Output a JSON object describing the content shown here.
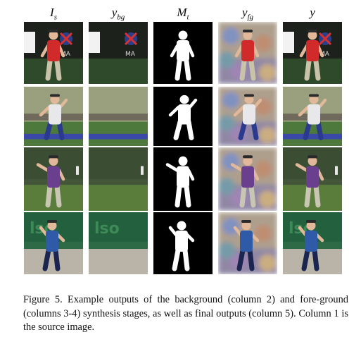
{
  "columns": [
    {
      "base": "I",
      "sub": "s"
    },
    {
      "base": "y",
      "sub": "bg"
    },
    {
      "base": "M",
      "sub": "t"
    },
    {
      "base": "y",
      "sub": "fg"
    },
    {
      "base": "y",
      "sub": ""
    }
  ],
  "rows": [
    {
      "scene": "golf-course-night",
      "sky": "#1c211c",
      "ground": "#2f4a2b",
      "shirt": "#d12a2a",
      "pants": "#c9c3aa",
      "signage": "MA"
    },
    {
      "scene": "tennis-court",
      "sky": "#9aa07e",
      "ground": "#4d7a3c",
      "shirt": "#e8e8ea",
      "pants": "#2b3a8c",
      "signage": ""
    },
    {
      "scene": "golf-course-day",
      "sky": "#44563a",
      "ground": "#5a7d3c",
      "shirt": "#6a3f8e",
      "pants": "#c9c6b4",
      "signage": ""
    },
    {
      "scene": "tennis-court-clay",
      "sky": "#2d6a45",
      "ground": "#b9b3a8",
      "shirt": "#2f5aa8",
      "pants": "#1c2550",
      "signage": "lso"
    }
  ],
  "caption": "Figure 5. Example outputs of the background (column 2) and fore-ground (columns 3-4) synthesis stages, as well as final outputs (column 5). Column 1 is the source image."
}
